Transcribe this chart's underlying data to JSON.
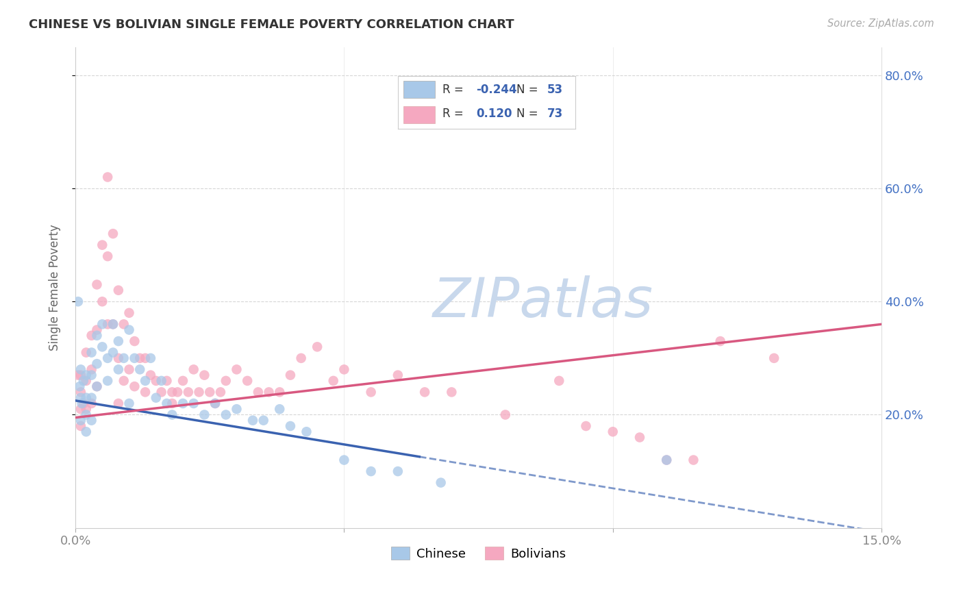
{
  "title": "CHINESE VS BOLIVIAN SINGLE FEMALE POVERTY CORRELATION CHART",
  "source": "Source: ZipAtlas.com",
  "ylabel": "Single Female Poverty",
  "xlim": [
    0.0,
    0.15
  ],
  "ylim": [
    0.0,
    0.85
  ],
  "xticks": [
    0.0,
    0.05,
    0.1,
    0.15
  ],
  "xtick_labels": [
    "0.0%",
    "",
    "",
    "15.0%"
  ],
  "ytick_labels_right": [
    "20.0%",
    "40.0%",
    "60.0%",
    "80.0%"
  ],
  "ytick_vals_right": [
    0.2,
    0.4,
    0.6,
    0.8
  ],
  "chinese_R": -0.244,
  "chinese_N": 53,
  "bolivian_R": 0.12,
  "bolivian_N": 73,
  "chinese_color": "#a8c8e8",
  "bolivian_color": "#f5a8c0",
  "chinese_line_color": "#3a62b0",
  "bolivian_line_color": "#d85880",
  "legend_text_color": "#333333",
  "legend_value_color": "#3a62b0",
  "watermark_color": "#c8d8ec",
  "background_color": "#ffffff",
  "grid_color": "#cccccc",
  "title_color": "#333333",
  "source_color": "#aaaaaa",
  "axis_label_color": "#666666",
  "tick_color": "#888888",
  "chinese_line_intercept": 0.225,
  "chinese_line_slope": -1.55,
  "bolivian_line_intercept": 0.195,
  "bolivian_line_slope": 1.1,
  "chinese_x": [
    0.0005,
    0.0008,
    0.001,
    0.001,
    0.001,
    0.0012,
    0.0015,
    0.002,
    0.002,
    0.002,
    0.002,
    0.003,
    0.003,
    0.003,
    0.003,
    0.004,
    0.004,
    0.004,
    0.005,
    0.005,
    0.006,
    0.006,
    0.007,
    0.007,
    0.008,
    0.008,
    0.009,
    0.01,
    0.01,
    0.011,
    0.012,
    0.013,
    0.014,
    0.015,
    0.016,
    0.017,
    0.018,
    0.02,
    0.022,
    0.024,
    0.026,
    0.028,
    0.03,
    0.033,
    0.035,
    0.038,
    0.04,
    0.043,
    0.05,
    0.055,
    0.06,
    0.068,
    0.11
  ],
  "chinese_y": [
    0.4,
    0.25,
    0.28,
    0.23,
    0.19,
    0.22,
    0.26,
    0.27,
    0.23,
    0.2,
    0.17,
    0.31,
    0.27,
    0.23,
    0.19,
    0.34,
    0.29,
    0.25,
    0.36,
    0.32,
    0.3,
    0.26,
    0.36,
    0.31,
    0.33,
    0.28,
    0.3,
    0.35,
    0.22,
    0.3,
    0.28,
    0.26,
    0.3,
    0.23,
    0.26,
    0.22,
    0.2,
    0.22,
    0.22,
    0.2,
    0.22,
    0.2,
    0.21,
    0.19,
    0.19,
    0.21,
    0.18,
    0.17,
    0.12,
    0.1,
    0.1,
    0.08,
    0.12
  ],
  "bolivian_x": [
    0.0005,
    0.001,
    0.001,
    0.001,
    0.001,
    0.0015,
    0.002,
    0.002,
    0.002,
    0.003,
    0.003,
    0.003,
    0.004,
    0.004,
    0.004,
    0.005,
    0.005,
    0.006,
    0.006,
    0.006,
    0.007,
    0.007,
    0.008,
    0.008,
    0.008,
    0.009,
    0.009,
    0.01,
    0.01,
    0.011,
    0.011,
    0.012,
    0.013,
    0.013,
    0.014,
    0.015,
    0.016,
    0.017,
    0.018,
    0.018,
    0.019,
    0.02,
    0.021,
    0.022,
    0.023,
    0.024,
    0.025,
    0.026,
    0.027,
    0.028,
    0.03,
    0.032,
    0.034,
    0.036,
    0.038,
    0.04,
    0.042,
    0.045,
    0.048,
    0.05,
    0.055,
    0.06,
    0.065,
    0.07,
    0.08,
    0.09,
    0.095,
    0.1,
    0.105,
    0.11,
    0.115,
    0.12,
    0.13
  ],
  "bolivian_y": [
    0.27,
    0.27,
    0.24,
    0.21,
    0.18,
    0.22,
    0.31,
    0.26,
    0.21,
    0.34,
    0.28,
    0.22,
    0.43,
    0.35,
    0.25,
    0.5,
    0.4,
    0.62,
    0.48,
    0.36,
    0.52,
    0.36,
    0.42,
    0.3,
    0.22,
    0.36,
    0.26,
    0.38,
    0.28,
    0.33,
    0.25,
    0.3,
    0.24,
    0.3,
    0.27,
    0.26,
    0.24,
    0.26,
    0.24,
    0.22,
    0.24,
    0.26,
    0.24,
    0.28,
    0.24,
    0.27,
    0.24,
    0.22,
    0.24,
    0.26,
    0.28,
    0.26,
    0.24,
    0.24,
    0.24,
    0.27,
    0.3,
    0.32,
    0.26,
    0.28,
    0.24,
    0.27,
    0.24,
    0.24,
    0.2,
    0.26,
    0.18,
    0.17,
    0.16,
    0.12,
    0.12,
    0.33,
    0.3
  ]
}
